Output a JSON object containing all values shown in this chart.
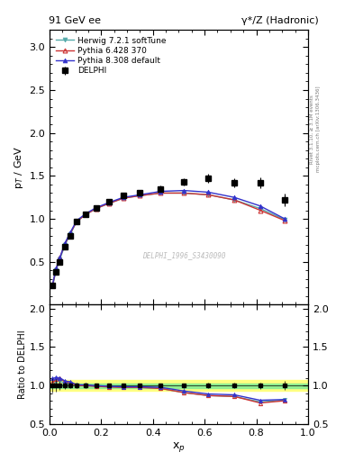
{
  "title_left": "91 GeV ee",
  "title_right": "γ*/Z (Hadronic)",
  "ylabel_main": "p$_{T}$ / GeV",
  "ylabel_ratio": "Ratio to DELPHI",
  "xlabel": "x$_{p}$",
  "right_label_line1": "Rivet 3.1.10, ≥ 3.1M events",
  "right_label_line2": "mcplots.cern.ch [arXiv:1306.3436]",
  "watermark": "DELPHI_1996_S3430090",
  "ylim_main": [
    0.0,
    3.2
  ],
  "ylim_ratio": [
    0.5,
    2.05
  ],
  "yticks_main": [
    0.5,
    1.0,
    1.5,
    2.0,
    2.5,
    3.0
  ],
  "yticks_ratio": [
    0.5,
    1.0,
    1.5,
    2.0
  ],
  "xlim": [
    0.0,
    1.0
  ],
  "delphi_x": [
    0.012,
    0.025,
    0.04,
    0.06,
    0.08,
    0.105,
    0.14,
    0.18,
    0.23,
    0.285,
    0.35,
    0.43,
    0.52,
    0.615,
    0.715,
    0.815,
    0.91
  ],
  "delphi_y": [
    0.22,
    0.38,
    0.5,
    0.68,
    0.8,
    0.97,
    1.05,
    1.13,
    1.2,
    1.27,
    1.3,
    1.35,
    1.43,
    1.47,
    1.42,
    1.42,
    1.22
  ],
  "delphi_err": [
    0.02,
    0.03,
    0.03,
    0.03,
    0.03,
    0.03,
    0.03,
    0.03,
    0.03,
    0.03,
    0.03,
    0.04,
    0.04,
    0.05,
    0.05,
    0.06,
    0.07
  ],
  "herwig_x": [
    0.012,
    0.025,
    0.04,
    0.06,
    0.08,
    0.105,
    0.14,
    0.18,
    0.23,
    0.285,
    0.35,
    0.43,
    0.52,
    0.615,
    0.715,
    0.815,
    0.91
  ],
  "herwig_y": [
    0.22,
    0.4,
    0.53,
    0.7,
    0.82,
    0.97,
    1.05,
    1.12,
    1.18,
    1.24,
    1.27,
    1.3,
    1.3,
    1.28,
    1.22,
    1.12,
    0.99
  ],
  "pythia6_x": [
    0.012,
    0.025,
    0.04,
    0.06,
    0.08,
    0.105,
    0.14,
    0.18,
    0.23,
    0.285,
    0.35,
    0.43,
    0.52,
    0.615,
    0.715,
    0.815,
    0.91
  ],
  "pythia6_y": [
    0.23,
    0.41,
    0.55,
    0.71,
    0.83,
    0.97,
    1.05,
    1.12,
    1.18,
    1.24,
    1.27,
    1.3,
    1.3,
    1.28,
    1.22,
    1.1,
    0.98
  ],
  "pythia8_x": [
    0.012,
    0.025,
    0.04,
    0.06,
    0.08,
    0.105,
    0.14,
    0.18,
    0.23,
    0.285,
    0.35,
    0.43,
    0.52,
    0.615,
    0.715,
    0.815,
    0.91
  ],
  "pythia8_y": [
    0.24,
    0.42,
    0.55,
    0.72,
    0.84,
    0.98,
    1.06,
    1.13,
    1.19,
    1.25,
    1.28,
    1.32,
    1.33,
    1.31,
    1.25,
    1.15,
    1.0
  ],
  "herwig_color": "#55aaaa",
  "pythia6_color": "#cc3333",
  "pythia8_color": "#3333cc",
  "delphi_color": "#000000",
  "band_green_lo": 0.97,
  "band_green_hi": 1.03,
  "band_yellow_lo": 0.93,
  "band_yellow_hi": 1.07,
  "legend_labels": [
    "DELPHI",
    "Herwig 7.2.1 softTune",
    "Pythia 6.428 370",
    "Pythia 8.308 default"
  ]
}
